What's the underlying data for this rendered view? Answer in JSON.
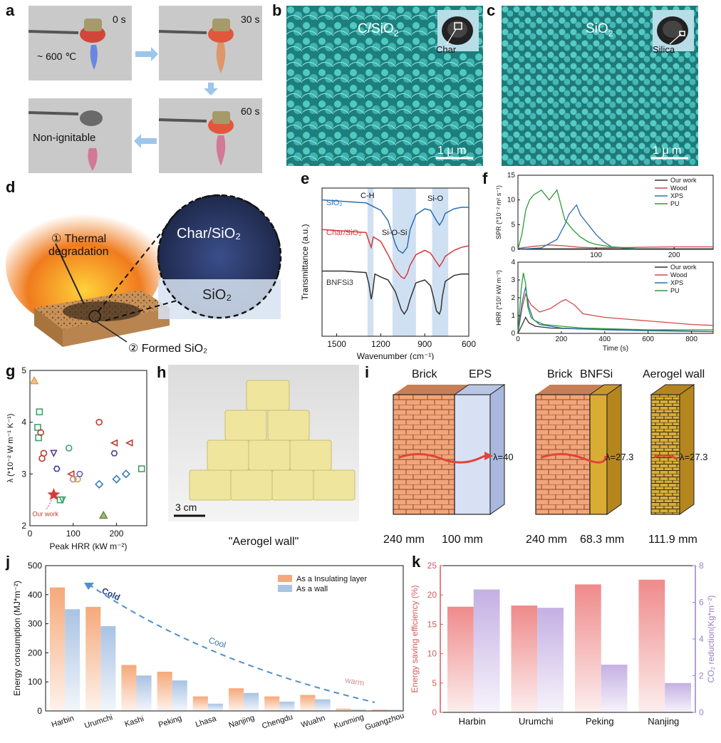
{
  "panel_labels": {
    "a": "a",
    "b": "b",
    "c": "c",
    "d": "d",
    "e": "e",
    "f": "f",
    "g": "g",
    "h": "h",
    "i": "i",
    "j": "j",
    "k": "k"
  },
  "panel_a": {
    "times": [
      "0 s",
      "30 s",
      "60 s"
    ],
    "temperature": "~ 600 ℃",
    "result": "Non-ignitable"
  },
  "panel_b": {
    "title": "C/SiO",
    "title_sub": "2",
    "inset": "Char",
    "scale": "1 μ m"
  },
  "panel_c": {
    "title": "SiO",
    "title_sub": "2",
    "inset": "Silica",
    "scale": "1 μ m"
  },
  "panel_d": {
    "step1": "① Thermal",
    "step1b": "degradation",
    "step2": "② Formed  SiO₂",
    "zoom_top": "Char/SiO₂",
    "zoom_bottom": "SiO₂"
  },
  "panel_h": {
    "scale": "3 cm",
    "caption": "\"Aerogel wall\""
  },
  "panel_i": {
    "headers": [
      "Brick",
      "EPS",
      "Brick",
      "BNFSi",
      "Aerogel wall"
    ],
    "lambdas": [
      "λ=40",
      "λ=27.3",
      "λ=27.3"
    ],
    "thickness": [
      "240 mm",
      "100 mm",
      "240 mm",
      "68.3 mm",
      "111.9 mm"
    ]
  },
  "chart_data": [
    {
      "id": "e",
      "type": "line",
      "xlabel": "Wavenumber (cm⁻¹)",
      "ylabel": "Transmittance (a.u.)",
      "xlim": [
        1600,
        600
      ],
      "xticks": [
        1500,
        1200,
        900,
        600
      ],
      "series_labels": [
        "SiO₂",
        "Char/SiO₂",
        "BNFSi3"
      ],
      "colors": [
        "#2e6fb0",
        "#d33b3b",
        "#333333"
      ],
      "annotations": [
        "C-H",
        "Si-O-Si",
        "Si-O"
      ],
      "bands": [
        [
          1290,
          1250
        ],
        [
          1120,
          960
        ],
        [
          850,
          740
        ]
      ],
      "series": [
        {
          "name": "SiO₂",
          "x": [
            1600,
            1450,
            1300,
            1200,
            1150,
            1100,
            1080,
            1050,
            1020,
            1000,
            960,
            900,
            860,
            820,
            800,
            780,
            760,
            700,
            650,
            600
          ],
          "y": [
            0.92,
            0.91,
            0.9,
            0.85,
            0.78,
            0.62,
            0.58,
            0.56,
            0.6,
            0.72,
            0.82,
            0.86,
            0.85,
            0.78,
            0.75,
            0.78,
            0.83,
            0.86,
            0.87,
            0.87
          ]
        },
        {
          "name": "Char/SiO₂",
          "x": [
            1600,
            1450,
            1300,
            1280,
            1265,
            1250,
            1200,
            1150,
            1100,
            1060,
            1040,
            1020,
            1000,
            960,
            900,
            860,
            820,
            800,
            780,
            760,
            700,
            650,
            600
          ],
          "y": [
            0.72,
            0.71,
            0.7,
            0.64,
            0.6,
            0.67,
            0.64,
            0.55,
            0.45,
            0.4,
            0.39,
            0.42,
            0.48,
            0.55,
            0.58,
            0.56,
            0.5,
            0.47,
            0.5,
            0.54,
            0.58,
            0.6,
            0.61
          ]
        },
        {
          "name": "BNFSi3",
          "x": [
            1600,
            1450,
            1300,
            1280,
            1265,
            1255,
            1240,
            1200,
            1150,
            1100,
            1060,
            1040,
            1020,
            1000,
            960,
            900,
            860,
            840,
            820,
            800,
            790,
            780,
            760,
            700,
            650,
            600
          ],
          "y": [
            0.44,
            0.44,
            0.43,
            0.35,
            0.25,
            0.3,
            0.42,
            0.4,
            0.38,
            0.3,
            0.18,
            0.15,
            0.18,
            0.25,
            0.36,
            0.38,
            0.34,
            0.26,
            0.17,
            0.15,
            0.18,
            0.27,
            0.37,
            0.41,
            0.42,
            0.42
          ]
        }
      ]
    },
    {
      "id": "f-top",
      "type": "line",
      "ylabel": "SPR (*10⁻² m² s⁻¹)",
      "xlim": [
        0,
        250
      ],
      "ylim": [
        0,
        15
      ],
      "xticks": [
        100,
        200
      ],
      "yticks": [
        0,
        5,
        10,
        15
      ],
      "legend": [
        "Our work",
        "Wood",
        "XPS",
        "PU"
      ],
      "colors": [
        "#333333",
        "#d34a4a",
        "#2e6fb0",
        "#2e9a3a"
      ],
      "series": [
        {
          "name": "Our work",
          "x": [
            0,
            50,
            100,
            150,
            200,
            250
          ],
          "y": [
            0.1,
            0.1,
            0.1,
            0.1,
            0.1,
            0.1
          ]
        },
        {
          "name": "Wood",
          "x": [
            0,
            20,
            40,
            60,
            80,
            100,
            150,
            200,
            250
          ],
          "y": [
            0.2,
            0.6,
            0.9,
            0.7,
            0.4,
            0.3,
            0.4,
            0.5,
            0.5
          ]
        },
        {
          "name": "XPS",
          "x": [
            0,
            30,
            50,
            60,
            65,
            70,
            75,
            80,
            90,
            100,
            110,
            120,
            150
          ],
          "y": [
            0,
            0.3,
            2,
            5,
            7,
            8,
            9,
            7,
            5,
            3,
            1.5,
            0.5,
            0.1
          ]
        },
        {
          "name": "PU",
          "x": [
            0,
            5,
            10,
            15,
            20,
            25,
            30,
            35,
            40,
            45,
            50,
            55,
            60,
            70,
            80,
            90,
            100,
            120,
            150
          ],
          "y": [
            0,
            3,
            8,
            10,
            11,
            11.5,
            12,
            11,
            10,
            11,
            12,
            9,
            6,
            4,
            2.5,
            1.5,
            1,
            0.5,
            0.2
          ]
        }
      ]
    },
    {
      "id": "f-bottom",
      "type": "line",
      "xlabel": "Time (s)",
      "ylabel": "HRR (*10² kW m⁻²)",
      "xlim": [
        0,
        900
      ],
      "ylim": [
        0,
        4
      ],
      "xticks": [
        0,
        200,
        400,
        600,
        800
      ],
      "yticks": [
        0,
        1,
        2,
        3,
        4
      ],
      "legend": [
        "Our work",
        "Wood",
        "XPS",
        "PU"
      ],
      "colors": [
        "#333333",
        "#d34a4a",
        "#2e6fb0",
        "#2e9a3a"
      ],
      "series": [
        {
          "name": "Our work",
          "x": [
            0,
            20,
            35,
            50,
            80,
            150,
            300,
            500,
            700,
            900
          ],
          "y": [
            0,
            0.5,
            0.9,
            0.6,
            0.4,
            0.3,
            0.25,
            0.2,
            0.15,
            0.1
          ]
        },
        {
          "name": "Wood",
          "x": [
            0,
            20,
            35,
            60,
            100,
            150,
            200,
            220,
            260,
            300,
            400,
            500,
            600,
            700,
            800,
            900
          ],
          "y": [
            0,
            1.5,
            2.2,
            1.6,
            1.2,
            1.4,
            1.8,
            1.9,
            1.6,
            1.1,
            0.9,
            0.8,
            0.7,
            0.6,
            0.5,
            0.45
          ]
        },
        {
          "name": "XPS",
          "x": [
            0,
            20,
            35,
            50,
            70,
            100,
            150,
            200,
            300,
            400,
            600,
            900
          ],
          "y": [
            0,
            1.8,
            2.6,
            1.5,
            0.8,
            0.5,
            0.4,
            0.3,
            0.25,
            0.2,
            0.15,
            0.1
          ]
        },
        {
          "name": "PU",
          "x": [
            0,
            15,
            25,
            35,
            45,
            60,
            80,
            120,
            200,
            300,
            450,
            600,
            800,
            900
          ],
          "y": [
            0,
            2.5,
            3.4,
            2.8,
            1.5,
            0.9,
            0.7,
            0.5,
            0.4,
            0.3,
            0.25,
            0.2,
            0.2,
            0.2
          ]
        }
      ]
    },
    {
      "id": "g",
      "type": "scatter",
      "xlabel": "Peak HRR (kW m⁻²)",
      "ylabel": "λ (*10⁻² W m⁻¹ K⁻¹)",
      "xlim": [
        0,
        270
      ],
      "ylim": [
        2,
        5
      ],
      "xticks": [
        0,
        100,
        200
      ],
      "yticks": [
        2,
        3,
        4,
        5
      ],
      "annotation": "Our work",
      "points": [
        {
          "x": 10,
          "y": 4.8,
          "shape": "tri",
          "color": "#e0a050"
        },
        {
          "x": 22,
          "y": 4.2,
          "shape": "square",
          "color": "#3aa36a"
        },
        {
          "x": 18,
          "y": 3.9,
          "shape": "square",
          "color": "#3aa36a"
        },
        {
          "x": 20,
          "y": 3.7,
          "shape": "square",
          "color": "#3aa36a"
        },
        {
          "x": 25,
          "y": 3.8,
          "shape": "circle",
          "color": "#c0392b"
        },
        {
          "x": 28,
          "y": 3.3,
          "shape": "circle",
          "color": "#c0392b"
        },
        {
          "x": 32,
          "y": 3.4,
          "shape": "circle",
          "color": "#c0392b"
        },
        {
          "x": 55,
          "y": 3.4,
          "shape": "tri-down",
          "color": "#5a3e8e"
        },
        {
          "x": 62,
          "y": 3.1,
          "shape": "hex",
          "color": "#3a3aa8"
        },
        {
          "x": 90,
          "y": 3.5,
          "shape": "circle",
          "color": "#3aa36a"
        },
        {
          "x": 95,
          "y": 3.0,
          "shape": "tri-left",
          "color": "#c0392b"
        },
        {
          "x": 100,
          "y": 2.9,
          "shape": "circle",
          "color": "#c08080"
        },
        {
          "x": 110,
          "y": 2.9,
          "shape": "circle",
          "color": "#c0a050"
        },
        {
          "x": 115,
          "y": 3.0,
          "shape": "hex",
          "color": "#6666cc"
        },
        {
          "x": 160,
          "y": 4.0,
          "shape": "circle",
          "color": "#c0392b"
        },
        {
          "x": 160,
          "y": 2.8,
          "shape": "diamond",
          "color": "#3a7ac0"
        },
        {
          "x": 170,
          "y": 2.2,
          "shape": "tri",
          "color": "#6a8a3a"
        },
        {
          "x": 195,
          "y": 3.4,
          "shape": "hex",
          "color": "#5a3e8e"
        },
        {
          "x": 195,
          "y": 3.6,
          "shape": "tri-left",
          "color": "#c0392b"
        },
        {
          "x": 200,
          "y": 2.9,
          "shape": "diamond",
          "color": "#3a7ac0"
        },
        {
          "x": 222,
          "y": 3.0,
          "shape": "diamond",
          "color": "#3a7ac0"
        },
        {
          "x": 230,
          "y": 3.6,
          "shape": "tri-left",
          "color": "#c0392b"
        },
        {
          "x": 258,
          "y": 3.1,
          "shape": "square",
          "color": "#3aa36a"
        },
        {
          "x": 75,
          "y": 2.5,
          "shape": "tri-down",
          "color": "#3aa36a"
        },
        {
          "x": 70,
          "y": 2.5,
          "shape": "square",
          "color": "#3aa36a"
        },
        {
          "x": 55,
          "y": 2.6,
          "shape": "star",
          "color": "#d33b3b"
        }
      ]
    },
    {
      "id": "j",
      "type": "bar",
      "ylabel": "Energy consumption (MJ*m⁻²)",
      "ylim": [
        0,
        500
      ],
      "yticks": [
        0,
        100,
        200,
        300,
        400,
        500
      ],
      "categories": [
        "Harbin",
        "Urumchi",
        "Kashi",
        "Peking",
        "Lhasa",
        "Nanjing",
        "Chengdu",
        "Wuahn",
        "Kunming",
        "Guangzhou"
      ],
      "series": [
        {
          "name": "As a Insulating layer",
          "color": "#f5a97a",
          "values": [
            425,
            358,
            158,
            135,
            50,
            78,
            50,
            55,
            8,
            5
          ]
        },
        {
          "name": "As a wall",
          "color": "#a9c3e3",
          "values": [
            350,
            292,
            122,
            105,
            25,
            62,
            32,
            40,
            5,
            4
          ]
        }
      ],
      "annotations": [
        "Cold",
        "Cool",
        "warm"
      ]
    },
    {
      "id": "k",
      "type": "bar",
      "ylabel": "Energy saving efficiency (%)",
      "ylabel_right": "CO₂ reduction(Kg*m⁻²)",
      "ylim": [
        0,
        25
      ],
      "ylim_right": [
        0,
        8
      ],
      "yticks": [
        0,
        5,
        10,
        15,
        20,
        25
      ],
      "yticks_right": [
        0,
        2,
        4,
        6,
        8
      ],
      "categories": [
        "Harbin",
        "Urumchi",
        "Peking",
        "Nanjing"
      ],
      "series": [
        {
          "name": "Energy saving efficiency",
          "color": "#ef8a8a",
          "values": [
            18.0,
            18.2,
            21.8,
            22.6
          ]
        },
        {
          "name": "CO₂ reduction",
          "color": "#c4b0e3",
          "axis": "right",
          "values": [
            6.7,
            5.7,
            2.6,
            1.6
          ]
        }
      ]
    }
  ]
}
